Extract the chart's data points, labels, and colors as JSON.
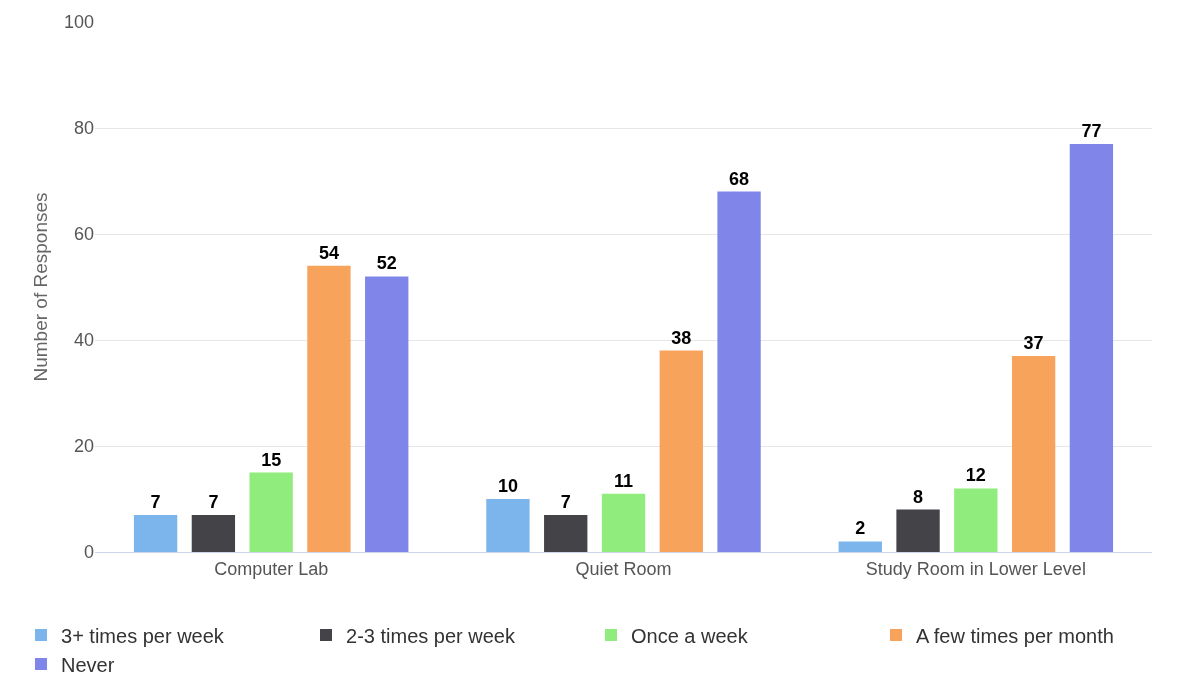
{
  "chart_data": {
    "type": "bar",
    "ylabel": "Number of Responses",
    "categories": [
      "Computer Lab",
      "Quiet Room",
      "Study Room in Lower Level"
    ],
    "series": [
      {
        "name": "3+ times per week",
        "color": "#7cb5ec",
        "values": [
          7,
          10,
          2
        ]
      },
      {
        "name": "2-3 times per week",
        "color": "#434348",
        "values": [
          7,
          7,
          8
        ]
      },
      {
        "name": "Once a week",
        "color": "#90ed7d",
        "values": [
          15,
          11,
          12
        ]
      },
      {
        "name": "A few times per month",
        "color": "#f7a35c",
        "values": [
          54,
          38,
          37
        ]
      },
      {
        "name": "Never",
        "color": "#8085e9",
        "values": [
          52,
          68,
          77
        ]
      }
    ],
    "ylim": [
      0,
      100
    ],
    "yticks": [
      0,
      20,
      40,
      60,
      80,
      100
    ],
    "grid": "y",
    "legend": "bottom left",
    "data_labels": true
  }
}
